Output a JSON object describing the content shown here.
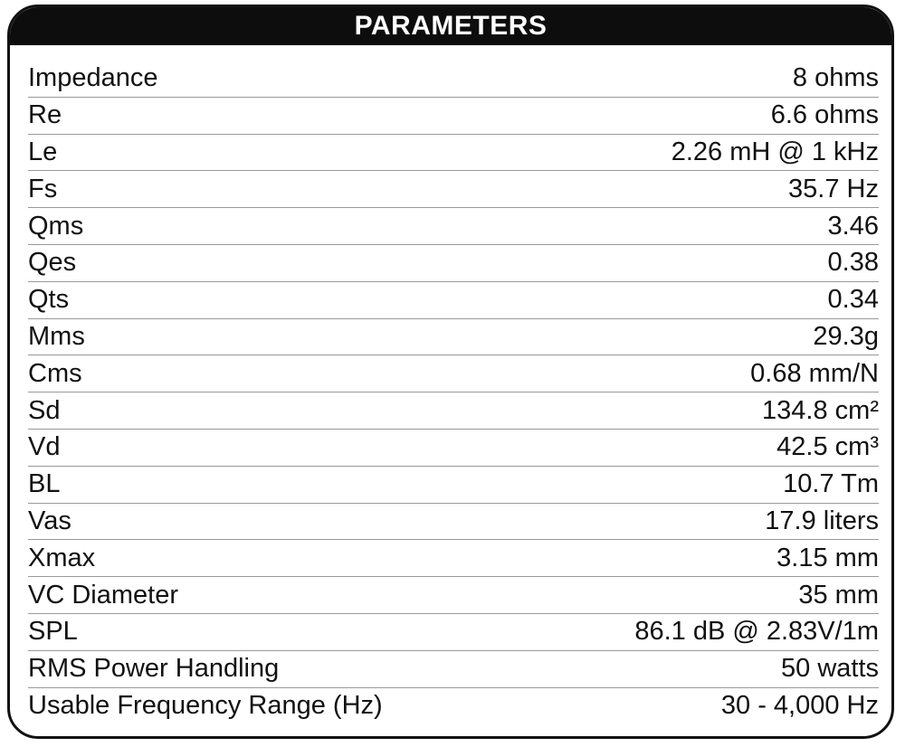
{
  "table": {
    "header": "PARAMETERS",
    "rows": [
      {
        "label": "Impedance",
        "value": "8 ohms"
      },
      {
        "label": "Re",
        "value": "6.6 ohms"
      },
      {
        "label": "Le",
        "value": "2.26 mH @ 1 kHz"
      },
      {
        "label": "Fs",
        "value": "35.7 Hz"
      },
      {
        "label": "Qms",
        "value": "3.46"
      },
      {
        "label": "Qes",
        "value": "0.38"
      },
      {
        "label": "Qts",
        "value": "0.34"
      },
      {
        "label": "Mms",
        "value": "29.3g"
      },
      {
        "label": "Cms",
        "value": "0.68 mm/N"
      },
      {
        "label": "Sd",
        "value": "134.8 cm²"
      },
      {
        "label": "Vd",
        "value": "42.5 cm³"
      },
      {
        "label": "BL",
        "value": "10.7 Tm"
      },
      {
        "label": "Vas",
        "value": "17.9 liters"
      },
      {
        "label": "Xmax",
        "value": "3.15 mm"
      },
      {
        "label": "VC Diameter",
        "value": "35 mm"
      },
      {
        "label": "SPL",
        "value": "86.1 dB @ 2.83V/1m"
      },
      {
        "label": "RMS Power Handling",
        "value": "50 watts"
      },
      {
        "label": "Usable Frequency Range (Hz)",
        "value": "30 - 4,000 Hz"
      }
    ]
  }
}
